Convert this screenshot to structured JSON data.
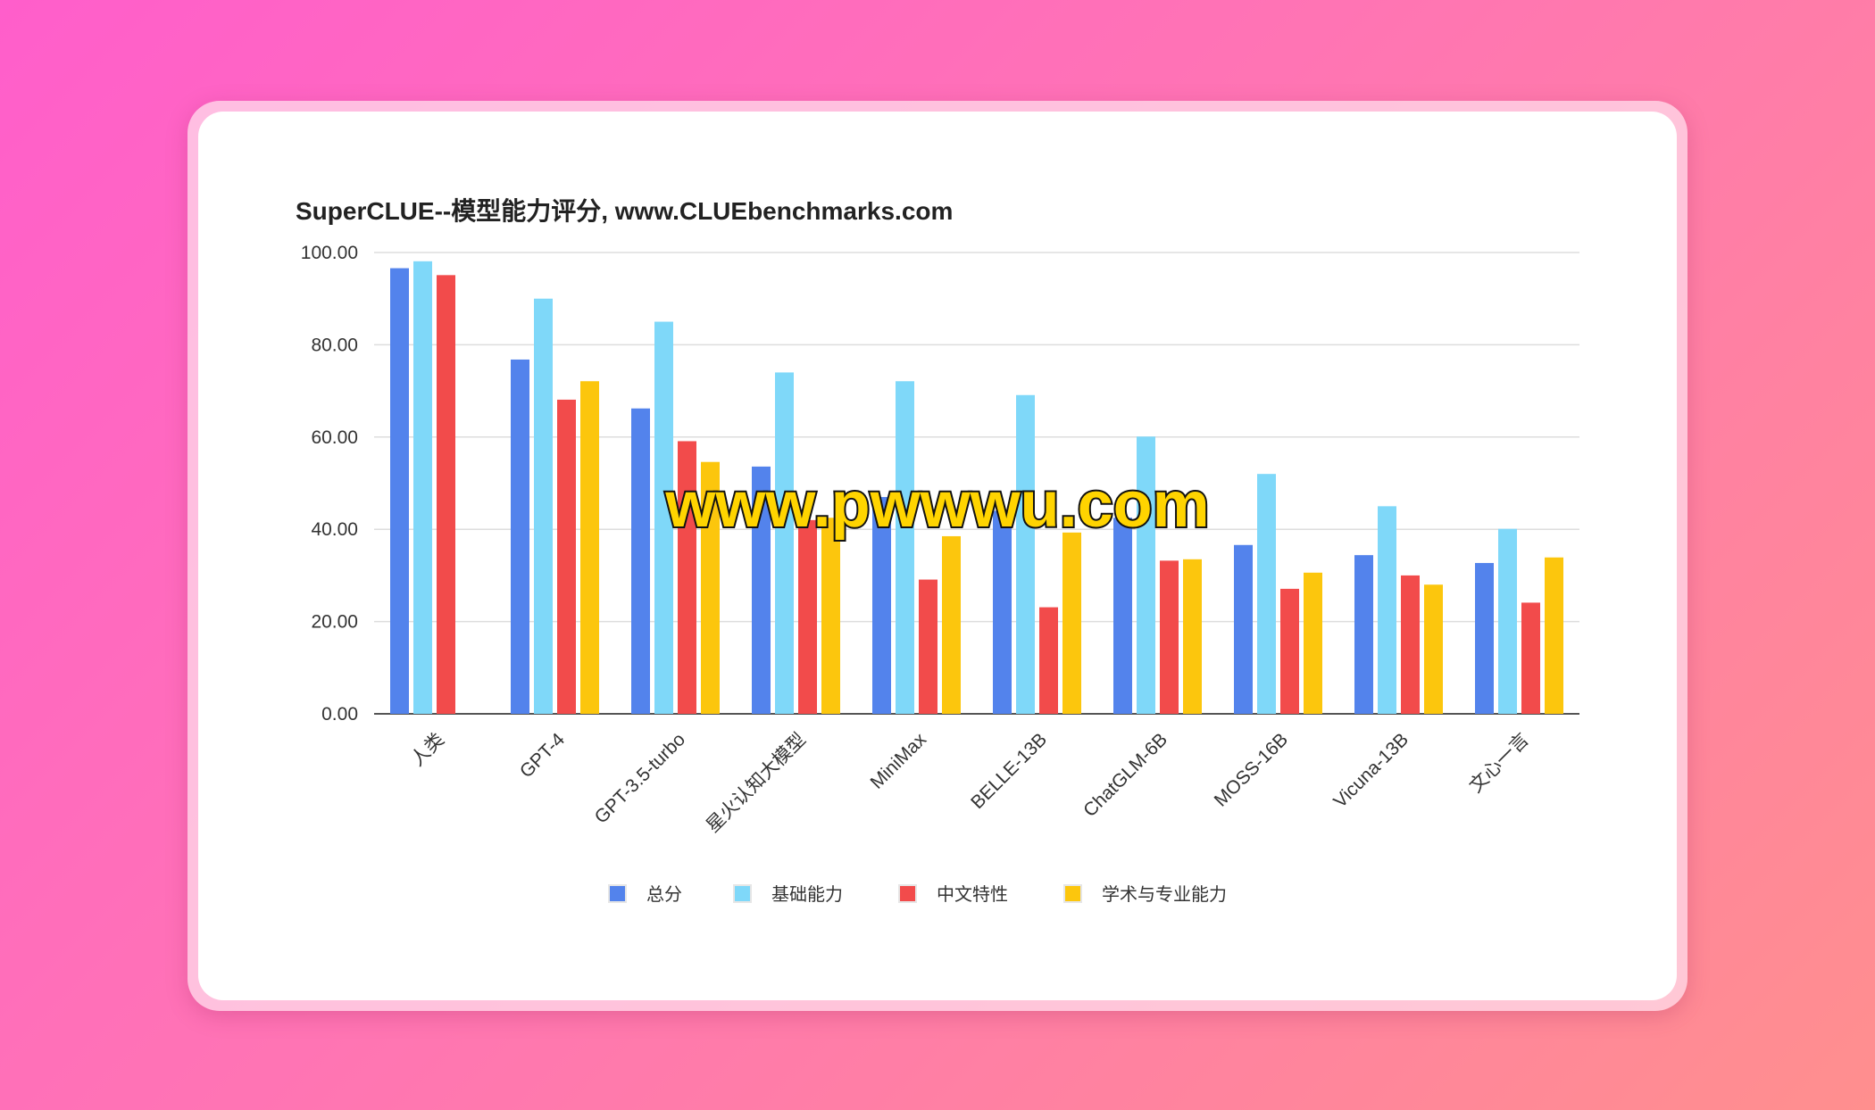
{
  "chart_data": {
    "type": "bar",
    "title": "SuperCLUE--模型能力评分, www.CLUEbenchmarks.com",
    "xlabel": "",
    "ylabel": "",
    "ylim": [
      0,
      100
    ],
    "yticks": [
      "0.00",
      "20.00",
      "40.00",
      "60.00",
      "80.00",
      "100.00"
    ],
    "grid": true,
    "legend_position": "bottom",
    "categories": [
      "人类",
      "GPT-4",
      "GPT-3.5-turbo",
      "星火认知大模型",
      "MiniMax",
      "BELLE-13B",
      "ChatGLM-6B",
      "MOSS-16B",
      "Vicuna-13B",
      "文心一言"
    ],
    "series": [
      {
        "name": "总分",
        "color": "#5383ec",
        "values": [
          96.6,
          76.8,
          66.2,
          53.6,
          47.0,
          44.0,
          42.5,
          36.6,
          34.4,
          32.7
        ]
      },
      {
        "name": "基础能力",
        "color": "#7fd8f9",
        "values": [
          98.1,
          90.0,
          85.0,
          74.0,
          72.1,
          69.1,
          60.1,
          52.0,
          45.0,
          40.1
        ]
      },
      {
        "name": "中文特性",
        "color": "#f24b4b",
        "values": [
          95.1,
          68.1,
          59.1,
          42.0,
          29.1,
          23.1,
          33.2,
          27.1,
          30.0,
          24.1
        ]
      },
      {
        "name": "学术与专业能力",
        "color": "#fcc60d",
        "values": [
          null,
          72.1,
          54.6,
          42.5,
          38.5,
          39.3,
          33.5,
          30.6,
          28.0,
          33.9
        ]
      }
    ]
  },
  "watermark": "www.pwwwu.com"
}
